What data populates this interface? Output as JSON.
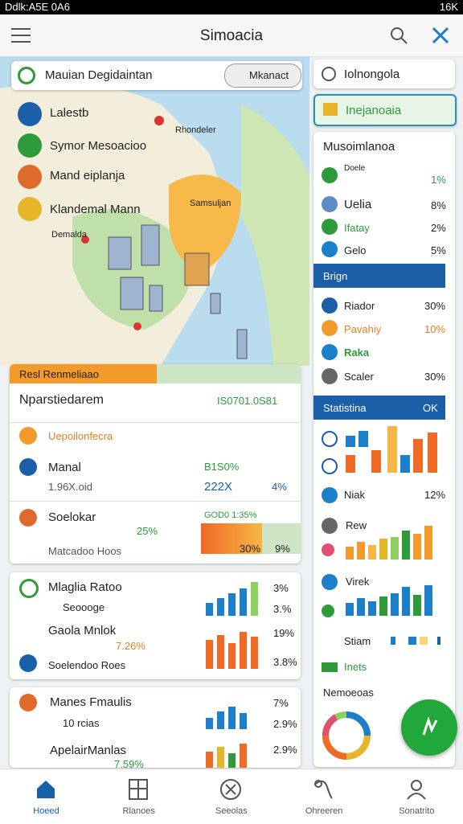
{
  "status_bar": {
    "left": "Ddlk:A5E 0A6",
    "right": "16K"
  },
  "app_bar": {
    "title": "Simoacia"
  },
  "map": {
    "search_text": "Mauian Degidaintan",
    "search_button": "Mkanact",
    "layers": [
      "Lalestb",
      "Symor Mesoacioo",
      "Mand eiplanja",
      "Klandemal Mann"
    ],
    "labels": [
      "Rhondeler",
      "Samsuljan",
      "Demalda"
    ]
  },
  "results_card": {
    "header": "Resl Renmeliaao",
    "title": "Nparstiedarem",
    "code": "IS0701.0S81",
    "filter": "Uepoilonfecra",
    "rows": [
      {
        "name": "Manal",
        "value": "B1S0%",
        "sub": "1.96X.oid",
        "value2": "222X",
        "change": "4%"
      },
      {
        "name": "Soelokar",
        "value": "GOD0 1:35%",
        "rating": "25%",
        "sub": "Matcadoo Hoos",
        "value2": "30%",
        "change": "9%"
      }
    ]
  },
  "card2": {
    "rows": [
      {
        "name": "Mlaglia Ratoo",
        "pct": "3%"
      },
      {
        "name": "Seoooge",
        "pct": "3.%"
      },
      {
        "name": "Gaola Mnlok",
        "rating": "7.26%",
        "pct": "19%"
      },
      {
        "name": "Soelendoo Roes",
        "pct": "3.8%"
      }
    ]
  },
  "card3": {
    "rows": [
      {
        "name": "Manes Fmaulis",
        "pct": "7%"
      },
      {
        "name": "10 rcias",
        "pct": "2.9%"
      },
      {
        "name": "ApelairManlas",
        "rating": "7.59%",
        "pct": "2.9%"
      }
    ]
  },
  "side": {
    "item1": "Iolnongola",
    "item2": "Inejanoaia",
    "section": "Musoimlanoa",
    "rows1": [
      {
        "name": "Doele",
        "pct": "1%"
      },
      {
        "name": "Uelia",
        "pct": "8%"
      },
      {
        "name": "Ifatay",
        "pct": "2%"
      },
      {
        "name": "Gelo",
        "pct": "5%"
      }
    ],
    "bar1": "Brign",
    "rows2": [
      {
        "name": "Riador",
        "pct": "30%"
      },
      {
        "name": "Pavahiy",
        "pct": "10%"
      },
      {
        "name": "Raka"
      },
      {
        "name": "Scaler",
        "pct": "30%"
      }
    ],
    "bar2": "Statistina",
    "bar2_right": "OK",
    "rows3": [
      {
        "name": "Niak",
        "pct": "12%"
      },
      {
        "name": "Rew"
      },
      {
        "name": "Virek"
      },
      {
        "name": "Stiam"
      },
      {
        "name": "Inets"
      }
    ],
    "footer": "Nemoeoas"
  },
  "nav": [
    "Hoeed",
    "Rlanoes",
    "Seeolas",
    "Ohreeren",
    "Sonatrito"
  ]
}
